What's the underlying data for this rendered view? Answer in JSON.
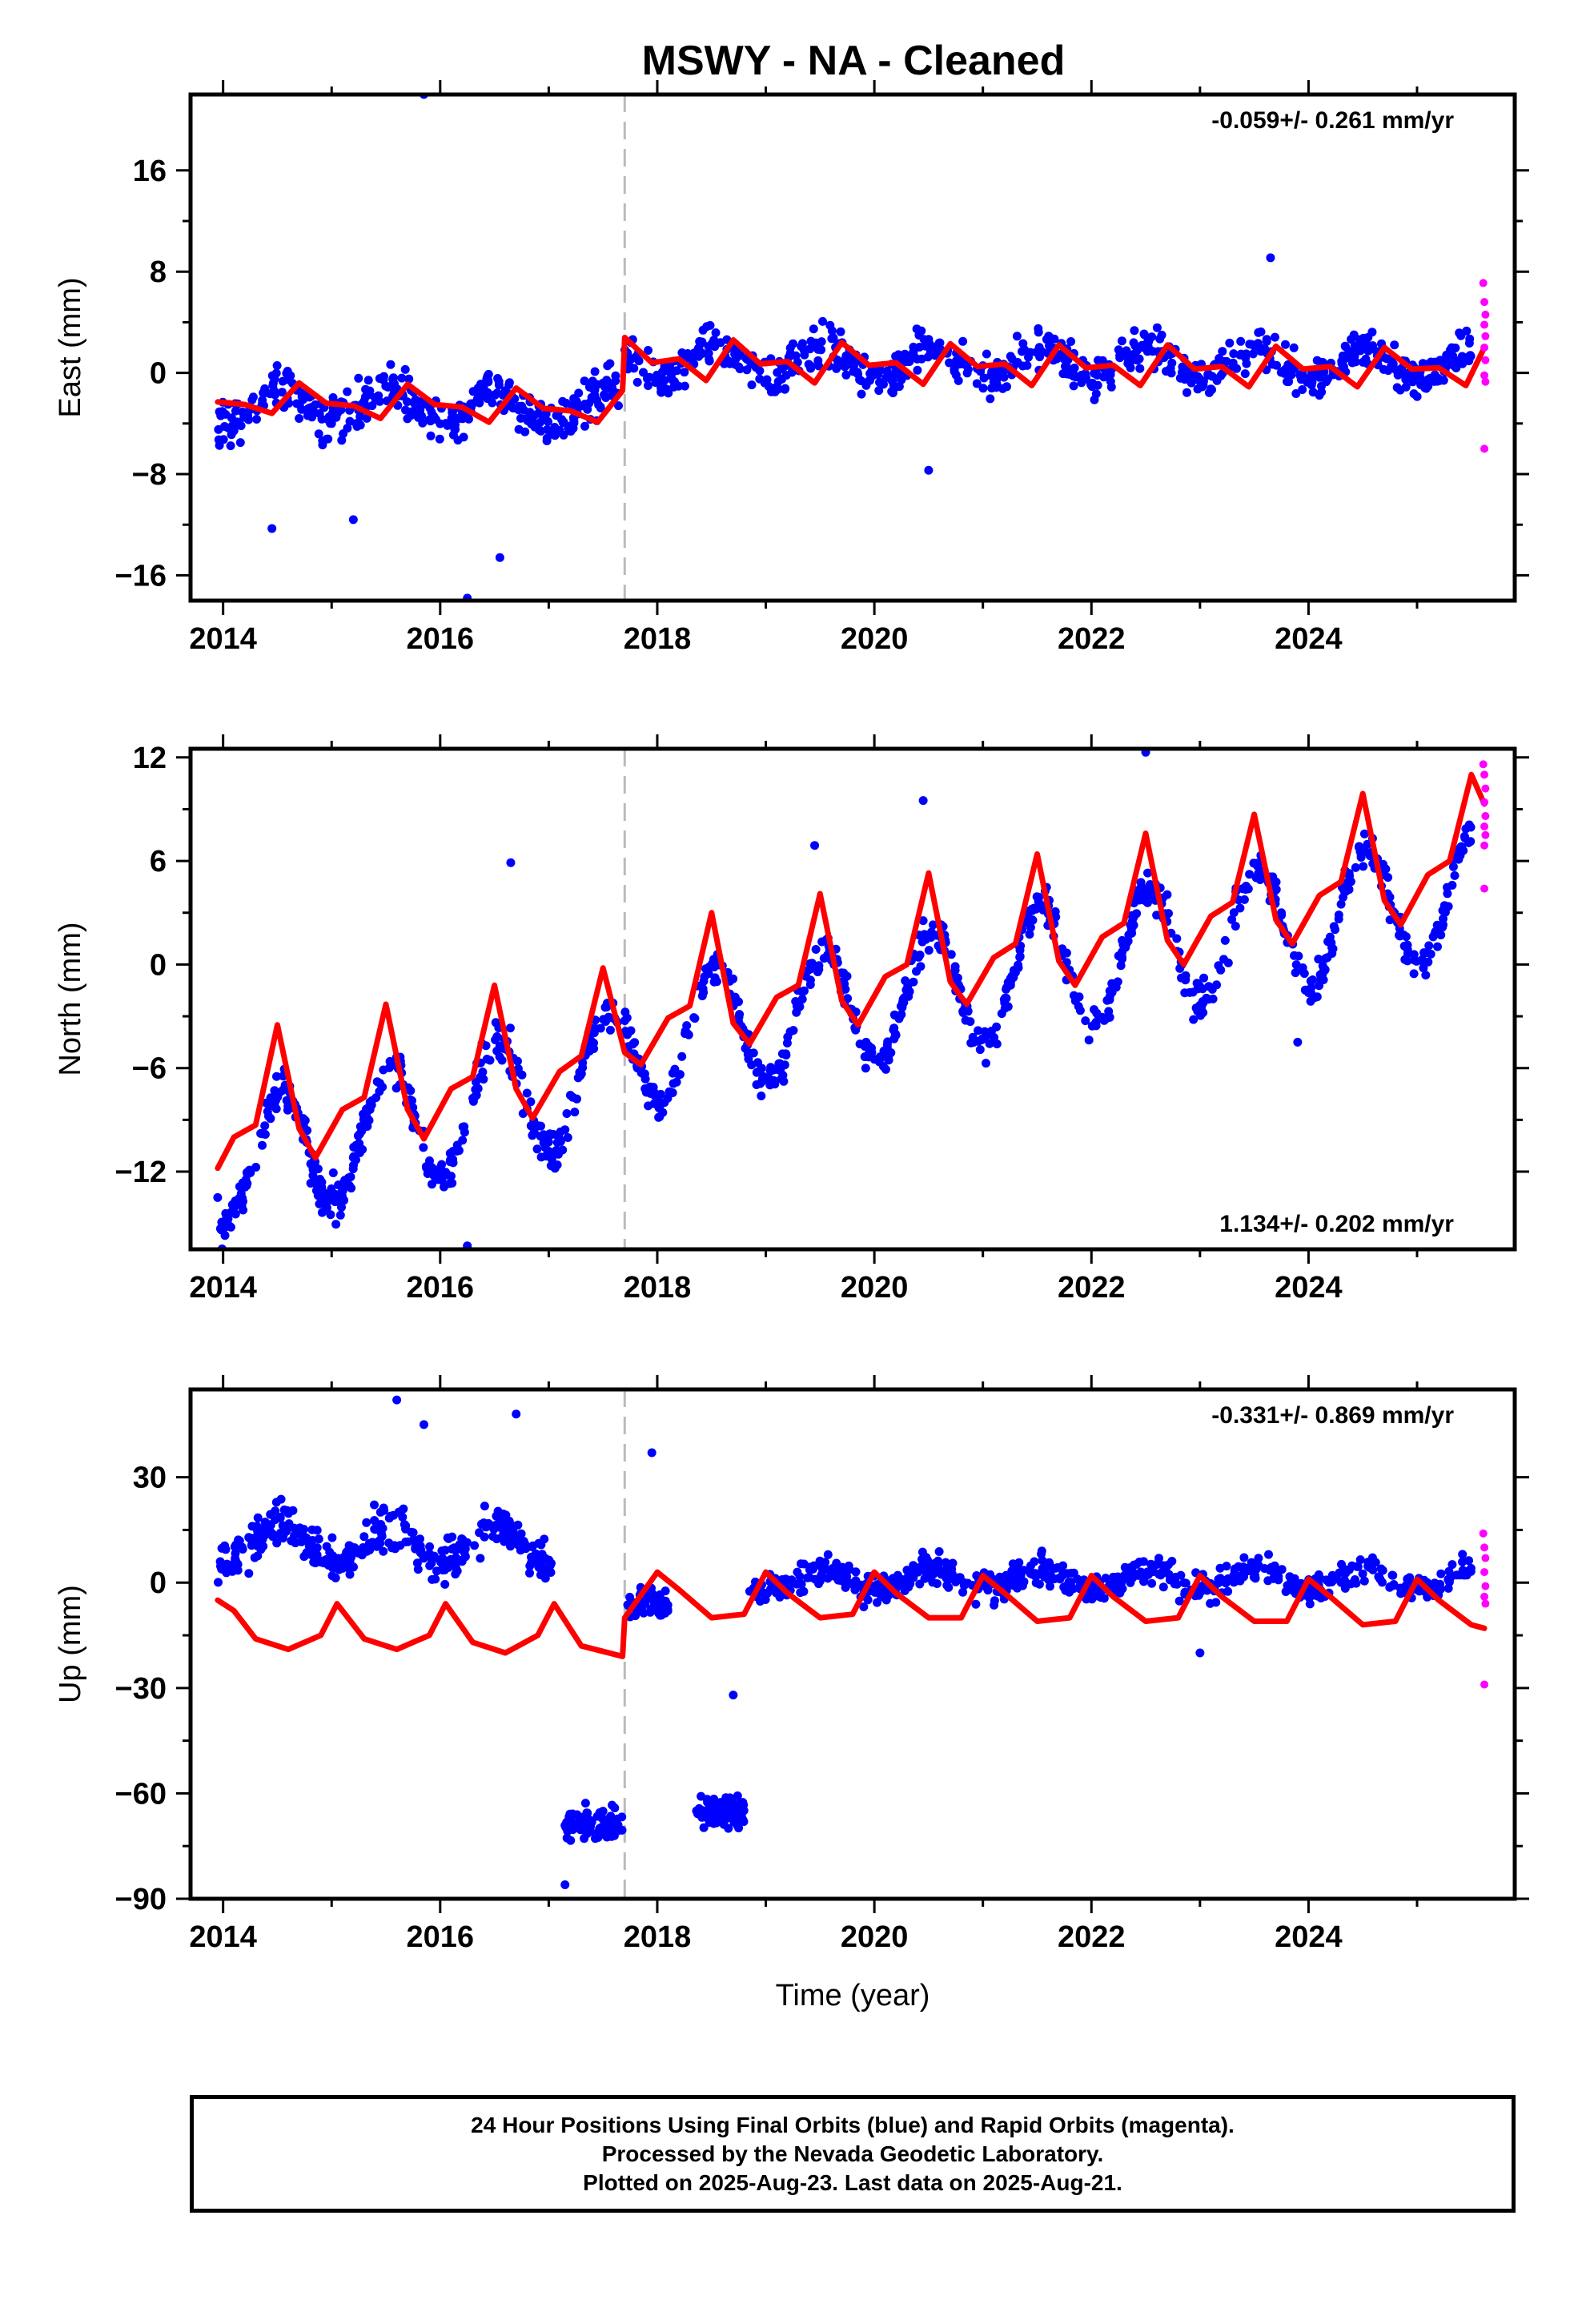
{
  "title": "MSWY  - NA - Cleaned",
  "footer": {
    "line1": "24 Hour Positions Using Final Orbits (blue) and Rapid Orbits (magenta).",
    "line2": "Processed by the Nevada Geodetic Laboratory.",
    "line3": "Plotted on 2025-Aug-23. Last data on 2025-Aug-21."
  },
  "colors": {
    "final": "#0000ff",
    "rapid": "#ff00ff",
    "model": "#ff0000",
    "break": "#bbbbbb"
  },
  "chart_data": [
    {
      "type": "scatter",
      "ylabel": "East (mm)",
      "xlabel": "",
      "rate_text": "-0.059+/- 0.261 mm/yr",
      "rate_position": "top-right",
      "xlim": [
        2013.7,
        2025.9
      ],
      "ylim": [
        -18,
        22
      ],
      "xticks": [
        "2014",
        "2016",
        "2018",
        "2020",
        "2022",
        "2024"
      ],
      "yticks": [
        "16",
        "8",
        "0",
        "-8",
        "-16"
      ],
      "break_line_x": 2017.7,
      "model_curve": {
        "name": "",
        "x": [
          2013.95,
          2014.2,
          2014.45,
          2014.7,
          2014.95,
          2015.2,
          2015.45,
          2015.7,
          2015.95,
          2016.2,
          2016.45,
          2016.7,
          2016.95,
          2017.2,
          2017.45,
          2017.68,
          2017.7,
          2017.95,
          2018.2,
          2018.45,
          2018.7,
          2018.95,
          2019.2,
          2019.45,
          2019.7,
          2019.95,
          2020.2,
          2020.45,
          2020.7,
          2020.95,
          2021.2,
          2021.45,
          2021.7,
          2021.95,
          2022.2,
          2022.45,
          2022.7,
          2022.95,
          2023.2,
          2023.45,
          2023.7,
          2023.95,
          2024.2,
          2024.45,
          2024.7,
          2024.95,
          2025.2,
          2025.45,
          2025.62
        ],
        "y": [
          -2.3,
          -2.5,
          -3.2,
          -0.8,
          -2.4,
          -2.6,
          -3.6,
          -0.9,
          -2.5,
          -2.7,
          -3.9,
          -1.2,
          -2.8,
          -3.0,
          -3.9,
          -1.4,
          2.8,
          0.8,
          1.1,
          -0.6,
          2.6,
          0.7,
          0.9,
          -0.8,
          2.4,
          0.6,
          0.8,
          -0.9,
          2.3,
          0.5,
          0.7,
          -1.0,
          2.2,
          0.4,
          0.6,
          -1.0,
          2.2,
          0.3,
          0.5,
          -1.1,
          2.1,
          0.3,
          0.5,
          -1.1,
          2.0,
          0.3,
          0.4,
          -1.0,
          2.0
        ]
      },
      "final_series": {
        "name": "Final Orbits",
        "segments": [
          {
            "x0": 2013.95,
            "x1": 2017.65,
            "mean": -2.6,
            "amp": 1.3,
            "spread": 2.6,
            "n": 380
          },
          {
            "x0": 2017.7,
            "x1": 2025.5,
            "mean": 0.8,
            "amp": 1.3,
            "spread": 2.3,
            "n": 720
          }
        ],
        "outliers": [
          {
            "x": 2015.85,
            "y": 22
          },
          {
            "x": 2016.25,
            "y": -17.8
          },
          {
            "x": 2014.45,
            "y": -12.3
          },
          {
            "x": 2015.2,
            "y": -11.6
          },
          {
            "x": 2016.55,
            "y": -14.6
          },
          {
            "x": 2020.5,
            "y": -7.7
          },
          {
            "x": 2023.65,
            "y": 9.1
          }
        ]
      },
      "rapid_series": {
        "name": "Rapid Orbits",
        "points": [
          {
            "x": 2025.61,
            "y": 7.1
          },
          {
            "x": 2025.62,
            "y": 5.6
          },
          {
            "x": 2025.63,
            "y": 4.6
          },
          {
            "x": 2025.62,
            "y": 3.8
          },
          {
            "x": 2025.63,
            "y": 2.9
          },
          {
            "x": 2025.62,
            "y": 2.0
          },
          {
            "x": 2025.63,
            "y": 1.0
          },
          {
            "x": 2025.62,
            "y": -0.2
          },
          {
            "x": 2025.63,
            "y": -0.7
          },
          {
            "x": 2025.62,
            "y": -6.0
          }
        ]
      }
    },
    {
      "type": "scatter",
      "ylabel": "North (mm)",
      "xlabel": "",
      "rate_text": "1.134+/- 0.202 mm/yr",
      "rate_position": "bottom-right",
      "xlim": [
        2013.7,
        2025.9
      ],
      "ylim": [
        -16.5,
        12.5
      ],
      "xticks": [
        "2014",
        "2016",
        "2018",
        "2020",
        "2022",
        "2024"
      ],
      "yticks": [
        "12",
        "6",
        "0",
        "-6",
        "-12"
      ],
      "break_line_x": 2017.7,
      "model_curve": {
        "name": "",
        "x": [
          2013.95,
          2014.1,
          2014.3,
          2014.5,
          2014.7,
          2014.85,
          2015.1,
          2015.3,
          2015.5,
          2015.7,
          2015.85,
          2016.1,
          2016.3,
          2016.5,
          2016.7,
          2016.85,
          2017.1,
          2017.3,
          2017.5,
          2017.7,
          2017.85,
          2018.1,
          2018.3,
          2018.5,
          2018.7,
          2018.85,
          2019.1,
          2019.3,
          2019.5,
          2019.7,
          2019.85,
          2020.1,
          2020.3,
          2020.5,
          2020.7,
          2020.85,
          2021.1,
          2021.3,
          2021.5,
          2021.7,
          2021.85,
          2022.1,
          2022.3,
          2022.5,
          2022.7,
          2022.85,
          2023.1,
          2023.3,
          2023.5,
          2023.7,
          2023.85,
          2024.1,
          2024.3,
          2024.5,
          2024.7,
          2024.85,
          2025.1,
          2025.3,
          2025.5,
          2025.62
        ],
        "y": [
          -11.8,
          -10.0,
          -9.3,
          -3.5,
          -9.5,
          -11.2,
          -8.4,
          -7.7,
          -2.3,
          -8.4,
          -10.1,
          -7.2,
          -6.5,
          -1.2,
          -7.2,
          -8.9,
          -6.2,
          -5.3,
          -0.2,
          -5.1,
          -5.8,
          -3.1,
          -2.4,
          3.0,
          -3.4,
          -4.6,
          -1.9,
          -1.2,
          4.1,
          -2.1,
          -3.5,
          -0.7,
          0.0,
          5.3,
          -1.0,
          -2.3,
          0.4,
          1.2,
          6.4,
          0.2,
          -1.2,
          1.6,
          2.4,
          7.6,
          1.4,
          0.0,
          2.8,
          3.6,
          8.7,
          2.6,
          1.2,
          4.0,
          4.8,
          9.9,
          3.7,
          2.3,
          5.2,
          6.0,
          11.0,
          9.3
        ]
      },
      "final_series": {
        "name": "Final Orbits",
        "segments": [
          {
            "x0": 2013.95,
            "x1": 2017.65,
            "mean": -11.8,
            "rate": 1.5,
            "amp": 3.5,
            "spread": 1.6,
            "n": 380
          },
          {
            "x0": 2017.7,
            "x1": 2025.5,
            "mean": -4.8,
            "rate": 1.15,
            "amp": 3.6,
            "spread": 1.5,
            "n": 720
          }
        ],
        "outliers": [
          {
            "x": 2016.25,
            "y": -16.3
          },
          {
            "x": 2013.95,
            "y": -13.5
          },
          {
            "x": 2016.65,
            "y": 5.9
          },
          {
            "x": 2019.45,
            "y": 6.9
          },
          {
            "x": 2020.45,
            "y": 9.5
          },
          {
            "x": 2022.5,
            "y": 12.3
          },
          {
            "x": 2023.9,
            "y": -4.5
          }
        ]
      },
      "rapid_series": {
        "name": "Rapid Orbits",
        "points": [
          {
            "x": 2025.61,
            "y": 11.6
          },
          {
            "x": 2025.62,
            "y": 11.0
          },
          {
            "x": 2025.63,
            "y": 10.2
          },
          {
            "x": 2025.62,
            "y": 9.4
          },
          {
            "x": 2025.63,
            "y": 8.6
          },
          {
            "x": 2025.62,
            "y": 8.0
          },
          {
            "x": 2025.63,
            "y": 7.5
          },
          {
            "x": 2025.62,
            "y": 6.9
          },
          {
            "x": 2025.62,
            "y": 4.4
          }
        ]
      }
    },
    {
      "type": "scatter",
      "ylabel": "Up (mm)",
      "xlabel": "Time (year)",
      "rate_text": "-0.331+/- 0.869 mm/yr",
      "rate_position": "top-right",
      "xlim": [
        2013.7,
        2025.9
      ],
      "ylim": [
        -90,
        55
      ],
      "xticks": [
        "2014",
        "2016",
        "2018",
        "2020",
        "2022",
        "2024"
      ],
      "yticks": [
        "30",
        "0",
        "-30",
        "-60",
        "-90"
      ],
      "break_line_x": 2017.7,
      "model_curve": {
        "name": "",
        "x": [
          2013.95,
          2014.1,
          2014.3,
          2014.6,
          2014.9,
          2015.05,
          2015.3,
          2015.6,
          2015.9,
          2016.05,
          2016.3,
          2016.6,
          2016.9,
          2017.05,
          2017.3,
          2017.68,
          2017.7,
          2018.0,
          2018.2,
          2018.5,
          2018.8,
          2019.0,
          2019.2,
          2019.5,
          2019.8,
          2020.0,
          2020.2,
          2020.5,
          2020.8,
          2021.0,
          2021.2,
          2021.5,
          2021.8,
          2022.0,
          2022.2,
          2022.5,
          2022.8,
          2023.0,
          2023.2,
          2023.5,
          2023.8,
          2024.0,
          2024.2,
          2024.5,
          2024.8,
          2025.0,
          2025.2,
          2025.5,
          2025.62
        ],
        "y": [
          -5,
          -8,
          -16,
          -19,
          -15,
          -6,
          -16,
          -19,
          -15,
          -6,
          -17,
          -20,
          -15,
          -6,
          -18,
          -21,
          -10,
          3,
          -2,
          -10,
          -9,
          3,
          -3,
          -10,
          -9,
          3,
          -3,
          -10,
          -10,
          2,
          -3,
          -11,
          -10,
          2,
          -4,
          -11,
          -10,
          2,
          -4,
          -11,
          -11,
          1,
          -4,
          -12,
          -11,
          1,
          -5,
          -12,
          -13
        ]
      },
      "final_series": {
        "name": "Final Orbits",
        "segments": [
          {
            "x0": 2013.95,
            "x1": 2017.05,
            "mean": 11,
            "amp": 5,
            "spread": 9,
            "n": 360
          },
          {
            "x0": 2017.15,
            "x1": 2017.68,
            "mean": -69,
            "amp": 0,
            "spread": 6,
            "n": 90
          },
          {
            "x0": 2017.72,
            "x1": 2018.1,
            "mean": -6,
            "amp": 0,
            "spread": 6,
            "n": 55
          },
          {
            "x0": 2018.35,
            "x1": 2018.8,
            "mean": -65,
            "amp": 0,
            "spread": 6,
            "n": 85
          },
          {
            "x0": 2018.85,
            "x1": 2025.5,
            "mean": 1,
            "amp": 3,
            "spread": 6,
            "n": 640
          }
        ],
        "outliers": [
          {
            "x": 2015.6,
            "y": 52
          },
          {
            "x": 2015.85,
            "y": 45
          },
          {
            "x": 2016.7,
            "y": 48
          },
          {
            "x": 2017.95,
            "y": 37
          },
          {
            "x": 2018.7,
            "y": -32
          },
          {
            "x": 2017.15,
            "y": -86
          },
          {
            "x": 2023.0,
            "y": -20
          }
        ]
      },
      "rapid_series": {
        "name": "Rapid Orbits",
        "points": [
          {
            "x": 2025.61,
            "y": 14
          },
          {
            "x": 2025.62,
            "y": 10
          },
          {
            "x": 2025.63,
            "y": 7
          },
          {
            "x": 2025.62,
            "y": 3
          },
          {
            "x": 2025.63,
            "y": -1
          },
          {
            "x": 2025.62,
            "y": -4
          },
          {
            "x": 2025.63,
            "y": -6
          },
          {
            "x": 2025.62,
            "y": -29
          }
        ]
      }
    }
  ]
}
